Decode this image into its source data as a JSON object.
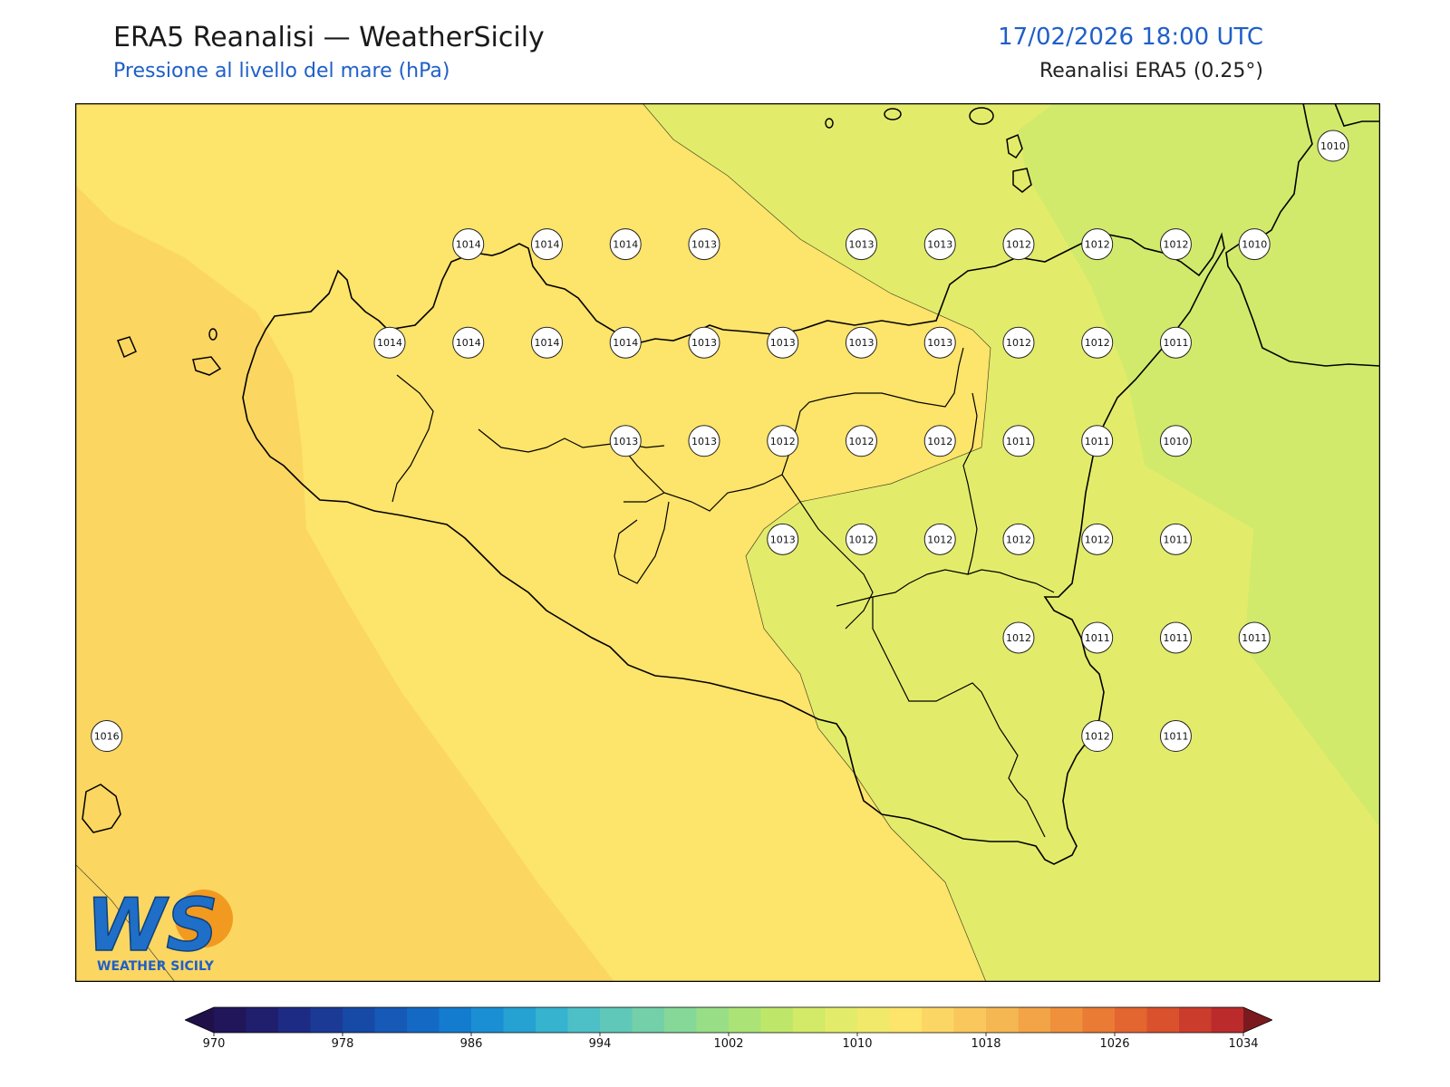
{
  "header": {
    "title": "ERA5 Reanalisi — WeatherSicily",
    "subtitle": "Pressione al livello del mare (hPa)",
    "datetime": "17/02/2026 18:00 UTC",
    "source": "Reanalisi ERA5 (0.25°)"
  },
  "logo": {
    "letters": "WS",
    "text": "WEATHER SICILY"
  },
  "stations": [
    {
      "value": "1010",
      "lon": 15.25,
      "lat": 38.25
    },
    {
      "value": "1010",
      "lon": 15.5,
      "lat": 38.25
    },
    {
      "value": "1014",
      "lon": 12.5,
      "lat": 37.95
    },
    {
      "value": "1014",
      "lon": 12.75,
      "lat": 37.95
    },
    {
      "value": "1014",
      "lon": 13.0,
      "lat": 37.95
    },
    {
      "value": "1013",
      "lon": 13.25,
      "lat": 37.95
    },
    {
      "value": "1013",
      "lon": 13.75,
      "lat": 37.95
    },
    {
      "value": "1013",
      "lon": 14.0,
      "lat": 37.95
    },
    {
      "value": "1012",
      "lon": 14.25,
      "lat": 37.95
    },
    {
      "value": "1012",
      "lon": 14.5,
      "lat": 37.95
    },
    {
      "value": "1012",
      "lon": 14.75,
      "lat": 37.95
    },
    {
      "value": "1010",
      "lon": 15.0,
      "lat": 37.95
    },
    {
      "value": "1014",
      "lon": 12.25,
      "lat": 37.65
    },
    {
      "value": "1014",
      "lon": 12.5,
      "lat": 37.65
    },
    {
      "value": "1014",
      "lon": 12.75,
      "lat": 37.65
    },
    {
      "value": "1014",
      "lon": 13.0,
      "lat": 37.65
    },
    {
      "value": "1013",
      "lon": 13.25,
      "lat": 37.65
    },
    {
      "value": "1013",
      "lon": 13.5,
      "lat": 37.65
    },
    {
      "value": "1013",
      "lon": 13.75,
      "lat": 37.65
    },
    {
      "value": "1013",
      "lon": 14.0,
      "lat": 37.65
    },
    {
      "value": "1012",
      "lon": 14.25,
      "lat": 37.65
    },
    {
      "value": "1012",
      "lon": 14.5,
      "lat": 37.65
    },
    {
      "value": "1011",
      "lon": 14.75,
      "lat": 37.65
    },
    {
      "value": "1013",
      "lon": 13.0,
      "lat": 37.35
    },
    {
      "value": "1013",
      "lon": 13.25,
      "lat": 37.35
    },
    {
      "value": "1012",
      "lon": 13.5,
      "lat": 37.35
    },
    {
      "value": "1012",
      "lon": 13.75,
      "lat": 37.35
    },
    {
      "value": "1012",
      "lon": 14.0,
      "lat": 37.35
    },
    {
      "value": "1011",
      "lon": 14.25,
      "lat": 37.35
    },
    {
      "value": "1011",
      "lon": 14.5,
      "lat": 37.35
    },
    {
      "value": "1010",
      "lon": 14.75,
      "lat": 37.35
    },
    {
      "value": "1013",
      "lon": 13.5,
      "lat": 37.05
    },
    {
      "value": "1012",
      "lon": 13.75,
      "lat": 37.05
    },
    {
      "value": "1012",
      "lon": 14.0,
      "lat": 37.05
    },
    {
      "value": "1012",
      "lon": 14.25,
      "lat": 37.05
    },
    {
      "value": "1012",
      "lon": 14.5,
      "lat": 37.05
    },
    {
      "value": "1011",
      "lon": 14.75,
      "lat": 37.05
    },
    {
      "value": "1012",
      "lon": 14.25,
      "lat": 36.75
    },
    {
      "value": "1011",
      "lon": 14.5,
      "lat": 36.75
    },
    {
      "value": "1011",
      "lon": 14.75,
      "lat": 36.75
    },
    {
      "value": "1011",
      "lon": 15.0,
      "lat": 36.75
    },
    {
      "value": "1016",
      "lon": 11.35,
      "lat": 36.45
    },
    {
      "value": "1012",
      "lon": 14.5,
      "lat": 36.45
    },
    {
      "value": "1011",
      "lon": 14.75,
      "lat": 36.45
    }
  ],
  "map_extent": {
    "lon": [
      11.25,
      15.4
    ],
    "lat": [
      35.7,
      38.38
    ]
  },
  "colorbar": {
    "min": 970,
    "max": 1034,
    "step": 2,
    "ticks": [
      "970",
      "978",
      "986",
      "994",
      "1002",
      "1010",
      "1018",
      "1026",
      "1034"
    ],
    "colors": [
      "#201659",
      "#1f1f6e",
      "#1e2b84",
      "#1a3a96",
      "#1749a6",
      "#1659b6",
      "#1369c4",
      "#137ccf",
      "#1a8fd3",
      "#25a1d2",
      "#35b3cf",
      "#4cc0c6",
      "#5fc8b8",
      "#73d0a8",
      "#85d898",
      "#98de87",
      "#abe377",
      "#bee76a",
      "#d2ea67",
      "#e3ec6a",
      "#f1e96a",
      "#fde46a",
      "#fcd665",
      "#f9c75c",
      "#f5b751",
      "#f2a446",
      "#ee903c",
      "#ea7b34",
      "#e3652f",
      "#d9512d",
      "#cc3c2c",
      "#bb2b2c"
    ],
    "under_color": "#20104a",
    "over_color": "#7a1a1f"
  },
  "colors": {
    "title": "#1a1a1a",
    "accent_blue": "#1f5fc8"
  }
}
